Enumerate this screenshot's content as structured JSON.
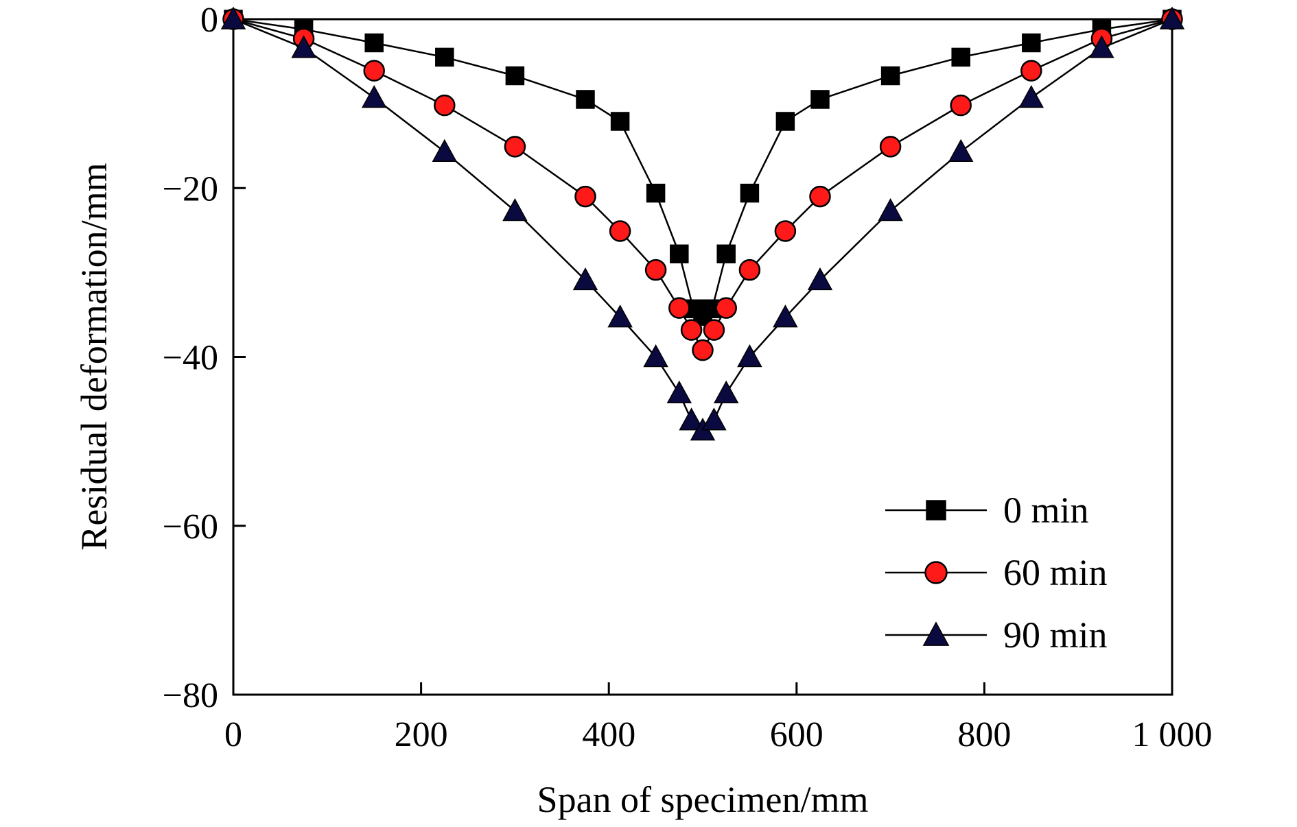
{
  "chart_data": {
    "type": "line",
    "xlabel": "Span of specimen/mm",
    "ylabel": "Residual deformation/mm",
    "xlim": [
      0,
      1000
    ],
    "ylim": [
      -80,
      0
    ],
    "xticks": [
      0,
      200,
      400,
      600,
      800,
      1000
    ],
    "xtick_labels": [
      "0",
      "200",
      "400",
      "600",
      "800",
      "1 000"
    ],
    "yticks": [
      0,
      -20,
      -40,
      -60,
      -80
    ],
    "ytick_labels": [
      "0",
      "−20",
      "−40",
      "−60",
      "−80"
    ],
    "grid": false,
    "legend_position": "bottom-right",
    "series": [
      {
        "name": "0 min",
        "marker": "square",
        "color": "#000000",
        "stroke": "#000000",
        "x": [
          0,
          75,
          150,
          225,
          300,
          375,
          412,
          450,
          475,
          490,
          500,
          510,
          525,
          550,
          588,
          625,
          700,
          775,
          850,
          925,
          1000
        ],
        "y": [
          0,
          -1.2,
          -2.8,
          -4.5,
          -6.7,
          -9.5,
          -12.1,
          -20.6,
          -27.8,
          -34.3,
          -35.2,
          -34.3,
          -27.8,
          -20.6,
          -12.1,
          -9.5,
          -6.7,
          -4.5,
          -2.8,
          -1.2,
          0
        ]
      },
      {
        "name": "60 min",
        "marker": "circle",
        "color": "#ff1a1a",
        "stroke": "#000000",
        "x": [
          0,
          75,
          150,
          225,
          300,
          375,
          412,
          450,
          475,
          488,
          500,
          512,
          525,
          550,
          588,
          625,
          700,
          775,
          850,
          925,
          1000
        ],
        "y": [
          0,
          -2.3,
          -6.1,
          -10.2,
          -15.1,
          -21.0,
          -25.1,
          -29.7,
          -34.2,
          -36.8,
          -39.2,
          -36.8,
          -34.2,
          -29.7,
          -25.1,
          -21.0,
          -15.1,
          -10.2,
          -6.1,
          -2.3,
          0
        ]
      },
      {
        "name": "90 min",
        "marker": "triangle",
        "color": "#0a0a40",
        "stroke": "#000000",
        "x": [
          0,
          75,
          150,
          225,
          300,
          375,
          412,
          450,
          475,
          488,
          500,
          512,
          525,
          550,
          588,
          625,
          700,
          775,
          850,
          925,
          1000
        ],
        "y": [
          0,
          -3.4,
          -9.3,
          -15.7,
          -22.7,
          -30.9,
          -35.3,
          -40.0,
          -44.3,
          -47.5,
          -48.7,
          -47.5,
          -44.3,
          -40.0,
          -35.3,
          -30.9,
          -22.7,
          -15.7,
          -9.3,
          -3.4,
          0
        ]
      }
    ]
  }
}
